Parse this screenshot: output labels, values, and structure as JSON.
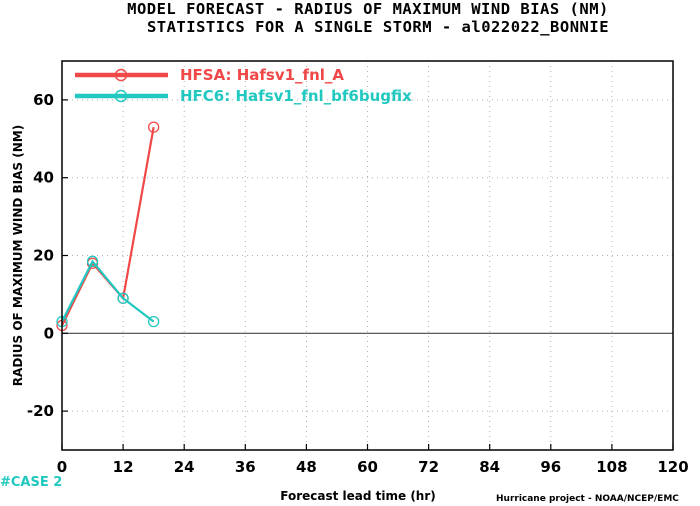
{
  "titles": {
    "line1": "MODEL FORECAST - RADIUS OF MAXIMUM WIND BIAS (NM)",
    "line2": "STATISTICS FOR A SINGLE STORM - al022022_BONNIE"
  },
  "footer": {
    "case_label": "#CASE  2",
    "credit": "Hurricane project - NOAA/NCEP/EMC"
  },
  "chart_data": {
    "type": "line",
    "title": "MODEL FORECAST - RADIUS OF MAXIMUM WIND BIAS (NM)",
    "subtitle": "STATISTICS FOR A SINGLE STORM - al022022_BONNIE",
    "xlabel": "Forecast lead time (hr)",
    "ylabel": "RADIUS OF MAXIMUM WIND BIAS (NM)",
    "xlim": [
      0,
      120
    ],
    "ylim": [
      -30,
      70
    ],
    "xticks": [
      0,
      12,
      24,
      36,
      48,
      60,
      72,
      84,
      96,
      108,
      120
    ],
    "yticks": [
      -20,
      0,
      20,
      40,
      60
    ],
    "grid": true,
    "legend_position": "top-left",
    "zero_line": true,
    "series": [
      {
        "name": "HFSA: Hafsv1_fnl_A",
        "color": "#f04848",
        "marker": "open-circle",
        "x": [
          0,
          6,
          12,
          18
        ],
        "y": [
          2,
          18,
          9,
          53
        ]
      },
      {
        "name": "HFC6: Hafsv1_fnl_bf6bugfix",
        "color": "#20c8c0",
        "marker": "open-circle",
        "x": [
          0,
          6,
          12,
          18
        ],
        "y": [
          3,
          18.5,
          9,
          3
        ]
      }
    ]
  }
}
